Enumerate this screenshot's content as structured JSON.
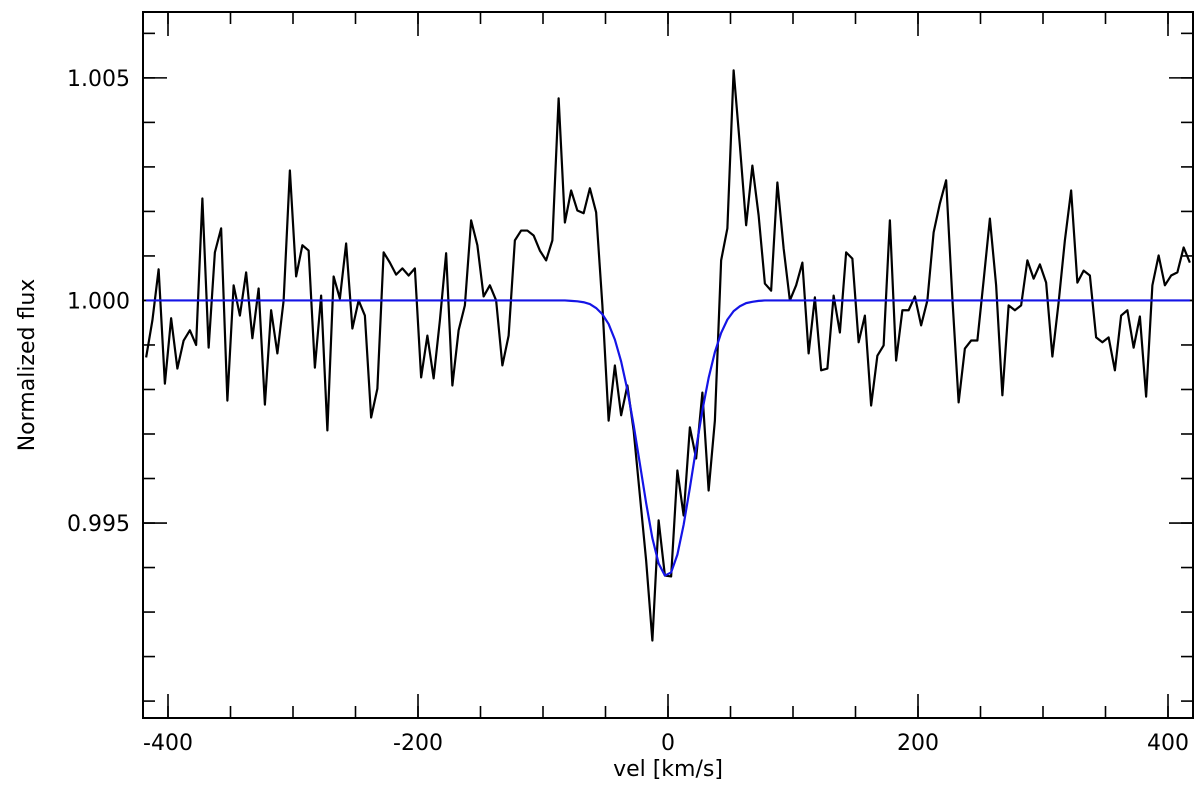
{
  "chart_data": {
    "type": "line",
    "xlabel": "vel [km/s]",
    "ylabel": "Normalized flux",
    "xlim": [
      -420,
      420
    ],
    "ylim": [
      0.99062,
      1.00648
    ],
    "xticks": [
      -400,
      -200,
      0,
      200,
      400
    ],
    "yticks": [
      0.995,
      {
        "value": 1,
        "label": "1.000"
      },
      1.005
    ],
    "xminorticks": [
      -400,
      -350,
      -300,
      -250,
      -200,
      -150,
      -100,
      -50,
      0,
      50,
      100,
      150,
      200,
      250,
      300,
      350,
      400
    ],
    "yminorticks": [
      0.991,
      0.992,
      0.993,
      0.994,
      0.995,
      0.996,
      0.997,
      0.998,
      0.999,
      1,
      1.001,
      1.002,
      1.003,
      1.004,
      1.005,
      1.006
    ],
    "x": [
      -417.5,
      -412.5,
      -407.5,
      -402.5,
      -397.5,
      -392.5,
      -387.5,
      -382.5,
      -377.5,
      -372.5,
      -367.5,
      -362.5,
      -357.5,
      -352.5,
      -347.5,
      -342.5,
      -337.5,
      -332.5,
      -327.5,
      -322.5,
      -317.5,
      -312.5,
      -307.5,
      -302.5,
      -297.5,
      -292.5,
      -287.5,
      -282.5,
      -277.5,
      -272.5,
      -267.5,
      -262.5,
      -257.5,
      -252.5,
      -247.5,
      -242.5,
      -237.5,
      -232.5,
      -227.5,
      -222.5,
      -217.5,
      -212.5,
      -207.5,
      -202.5,
      -197.5,
      -192.5,
      -187.5,
      -182.5,
      -177.5,
      -172.5,
      -167.5,
      -162.5,
      -157.5,
      -152.5,
      -147.5,
      -142.5,
      -137.5,
      -132.5,
      -127.5,
      -122.5,
      -117.5,
      -112.5,
      -107.5,
      -102.5,
      -97.5,
      -92.5,
      -87.5,
      -82.5,
      -77.5,
      -72.5,
      -67.5,
      -62.5,
      -57.5,
      -52.5,
      -47.5,
      -42.5,
      -37.5,
      -32.5,
      -27.5,
      -22.5,
      -17.5,
      -12.5,
      -7.5,
      -2.5,
      2.5,
      7.5,
      12.5,
      17.5,
      22.5,
      27.5,
      32.5,
      37.5,
      42.5,
      47.5,
      52.5,
      57.5,
      62.5,
      67.5,
      72.5,
      77.5,
      82.5,
      87.5,
      92.5,
      97.5,
      102.5,
      107.5,
      112.5,
      117.5,
      122.5,
      127.5,
      132.5,
      137.5,
      142.5,
      147.5,
      152.5,
      157.5,
      162.5,
      167.5,
      172.5,
      177.5,
      182.5,
      187.5,
      192.5,
      197.5,
      202.5,
      207.5,
      212.5,
      217.5,
      222.5,
      227.5,
      232.5,
      237.5,
      242.5,
      247.5,
      252.5,
      257.5,
      262.5,
      267.5,
      272.5,
      277.5,
      282.5,
      287.5,
      292.5,
      297.5,
      302.5,
      307.5,
      312.5,
      317.5,
      322.5,
      327.5,
      332.5,
      337.5,
      342.5,
      347.5,
      352.5,
      357.5,
      362.5,
      367.5,
      372.5,
      377.5,
      382.5,
      387.5,
      392.5,
      397.5,
      402.5,
      407.5,
      412.5,
      417.5
    ],
    "series": [
      {
        "color": "#000000",
        "values": [
          0.99872,
          0.99955,
          1.0007,
          0.99813,
          0.9996,
          0.99847,
          0.9991,
          0.99933,
          0.999,
          1.00229,
          0.99894,
          1.00108,
          1.00162,
          0.99775,
          1.00034,
          0.99966,
          1.00063,
          0.99915,
          1.00027,
          0.99766,
          0.99978,
          0.99881,
          1.0,
          1.00292,
          1.00054,
          1.00124,
          1.00112,
          0.99849,
          1.00011,
          0.99708,
          1.00054,
          1.00004,
          1.00128,
          0.99937,
          1.0,
          0.99966,
          0.99737,
          0.99802,
          1.00108,
          1.00085,
          1.00058,
          1.00072,
          1.00056,
          1.00072,
          0.99827,
          0.99921,
          0.99825,
          0.99955,
          1.00106,
          0.99809,
          0.99933,
          0.99989,
          1.0018,
          1.00124,
          1.00009,
          1.00034,
          1.0,
          0.99854,
          0.99921,
          1.00135,
          1.00157,
          1.00157,
          1.00146,
          1.00112,
          1.0009,
          1.00135,
          1.00454,
          1.00175,
          1.00247,
          1.00202,
          1.00196,
          1.00252,
          1.00198,
          0.99989,
          0.9973,
          0.99854,
          0.99742,
          0.99809,
          0.99708,
          0.99562,
          0.99416,
          0.99236,
          0.99506,
          0.99382,
          0.9938,
          0.99618,
          0.99517,
          0.99715,
          0.99645,
          0.99793,
          0.99573,
          0.9973,
          1.0009,
          1.00162,
          1.00517,
          1.00348,
          1.00169,
          1.00303,
          1.00191,
          1.00038,
          1.00022,
          1.00265,
          1.00117,
          1.0,
          1.00034,
          1.00085,
          0.99881,
          1.00007,
          0.99843,
          0.99847,
          1.00011,
          0.99928,
          1.00108,
          1.00094,
          0.99906,
          0.99966,
          0.99764,
          0.99876,
          0.99899,
          1.0018,
          0.99865,
          0.99978,
          0.99978,
          1.00009,
          0.99944,
          1.0,
          1.00153,
          1.00218,
          1.0027,
          1.00004,
          0.99771,
          0.99892,
          0.9991,
          0.9991,
          1.00045,
          1.00184,
          1.00034,
          0.99787,
          0.99989,
          0.99978,
          0.99989,
          1.0009,
          1.00049,
          1.00081,
          1.0004,
          0.99874,
          0.99996,
          1.00135,
          1.00247,
          1.0004,
          1.00067,
          1.00056,
          0.99917,
          0.99906,
          0.99917,
          0.99843,
          0.99966,
          0.99978,
          0.99894,
          0.99964,
          0.99784,
          1.00034,
          1.00101,
          1.00034,
          1.00056,
          1.00063,
          1.00119,
          1.00085
        ]
      },
      {
        "color": "#1414e6",
        "values": [
          1,
          1,
          1,
          1,
          1,
          1,
          1,
          1,
          1,
          1,
          1,
          1,
          1,
          1,
          1,
          1,
          1,
          1,
          1,
          1,
          1,
          1,
          1,
          1,
          1,
          1,
          1,
          1,
          1,
          1,
          1,
          1,
          1,
          1,
          1,
          1,
          1,
          1,
          1,
          1,
          1,
          1,
          1,
          1,
          1,
          1,
          1,
          1,
          1,
          1,
          1,
          1,
          1,
          1,
          1,
          1,
          1,
          1,
          1,
          1,
          1,
          1,
          1,
          1,
          1,
          1,
          1,
          1,
          0.99999,
          0.99998,
          0.99996,
          0.99992,
          0.99983,
          0.99969,
          0.99947,
          0.99912,
          0.99863,
          0.99799,
          0.9972,
          0.99633,
          0.99545,
          0.99466,
          0.99409,
          0.99382,
          0.99389,
          0.99429,
          0.99496,
          0.99579,
          0.99668,
          0.99753,
          0.99826,
          0.99884,
          0.99927,
          0.99957,
          0.99976,
          0.99987,
          0.99994,
          0.99997,
          0.99999,
          1,
          1,
          1,
          1,
          1,
          1,
          1,
          1,
          1,
          1,
          1,
          1,
          1,
          1,
          1,
          1,
          1,
          1,
          1,
          1,
          1,
          1,
          1,
          1,
          1,
          1,
          1,
          1,
          1,
          1,
          1,
          1,
          1,
          1,
          1,
          1,
          1,
          1,
          1,
          1,
          1,
          1,
          1,
          1,
          1,
          1,
          1,
          1,
          1,
          1,
          1,
          1,
          1,
          1,
          1,
          1,
          1,
          1,
          1,
          1,
          1,
          1,
          1,
          1,
          1,
          1,
          1,
          1,
          1
        ]
      }
    ]
  }
}
